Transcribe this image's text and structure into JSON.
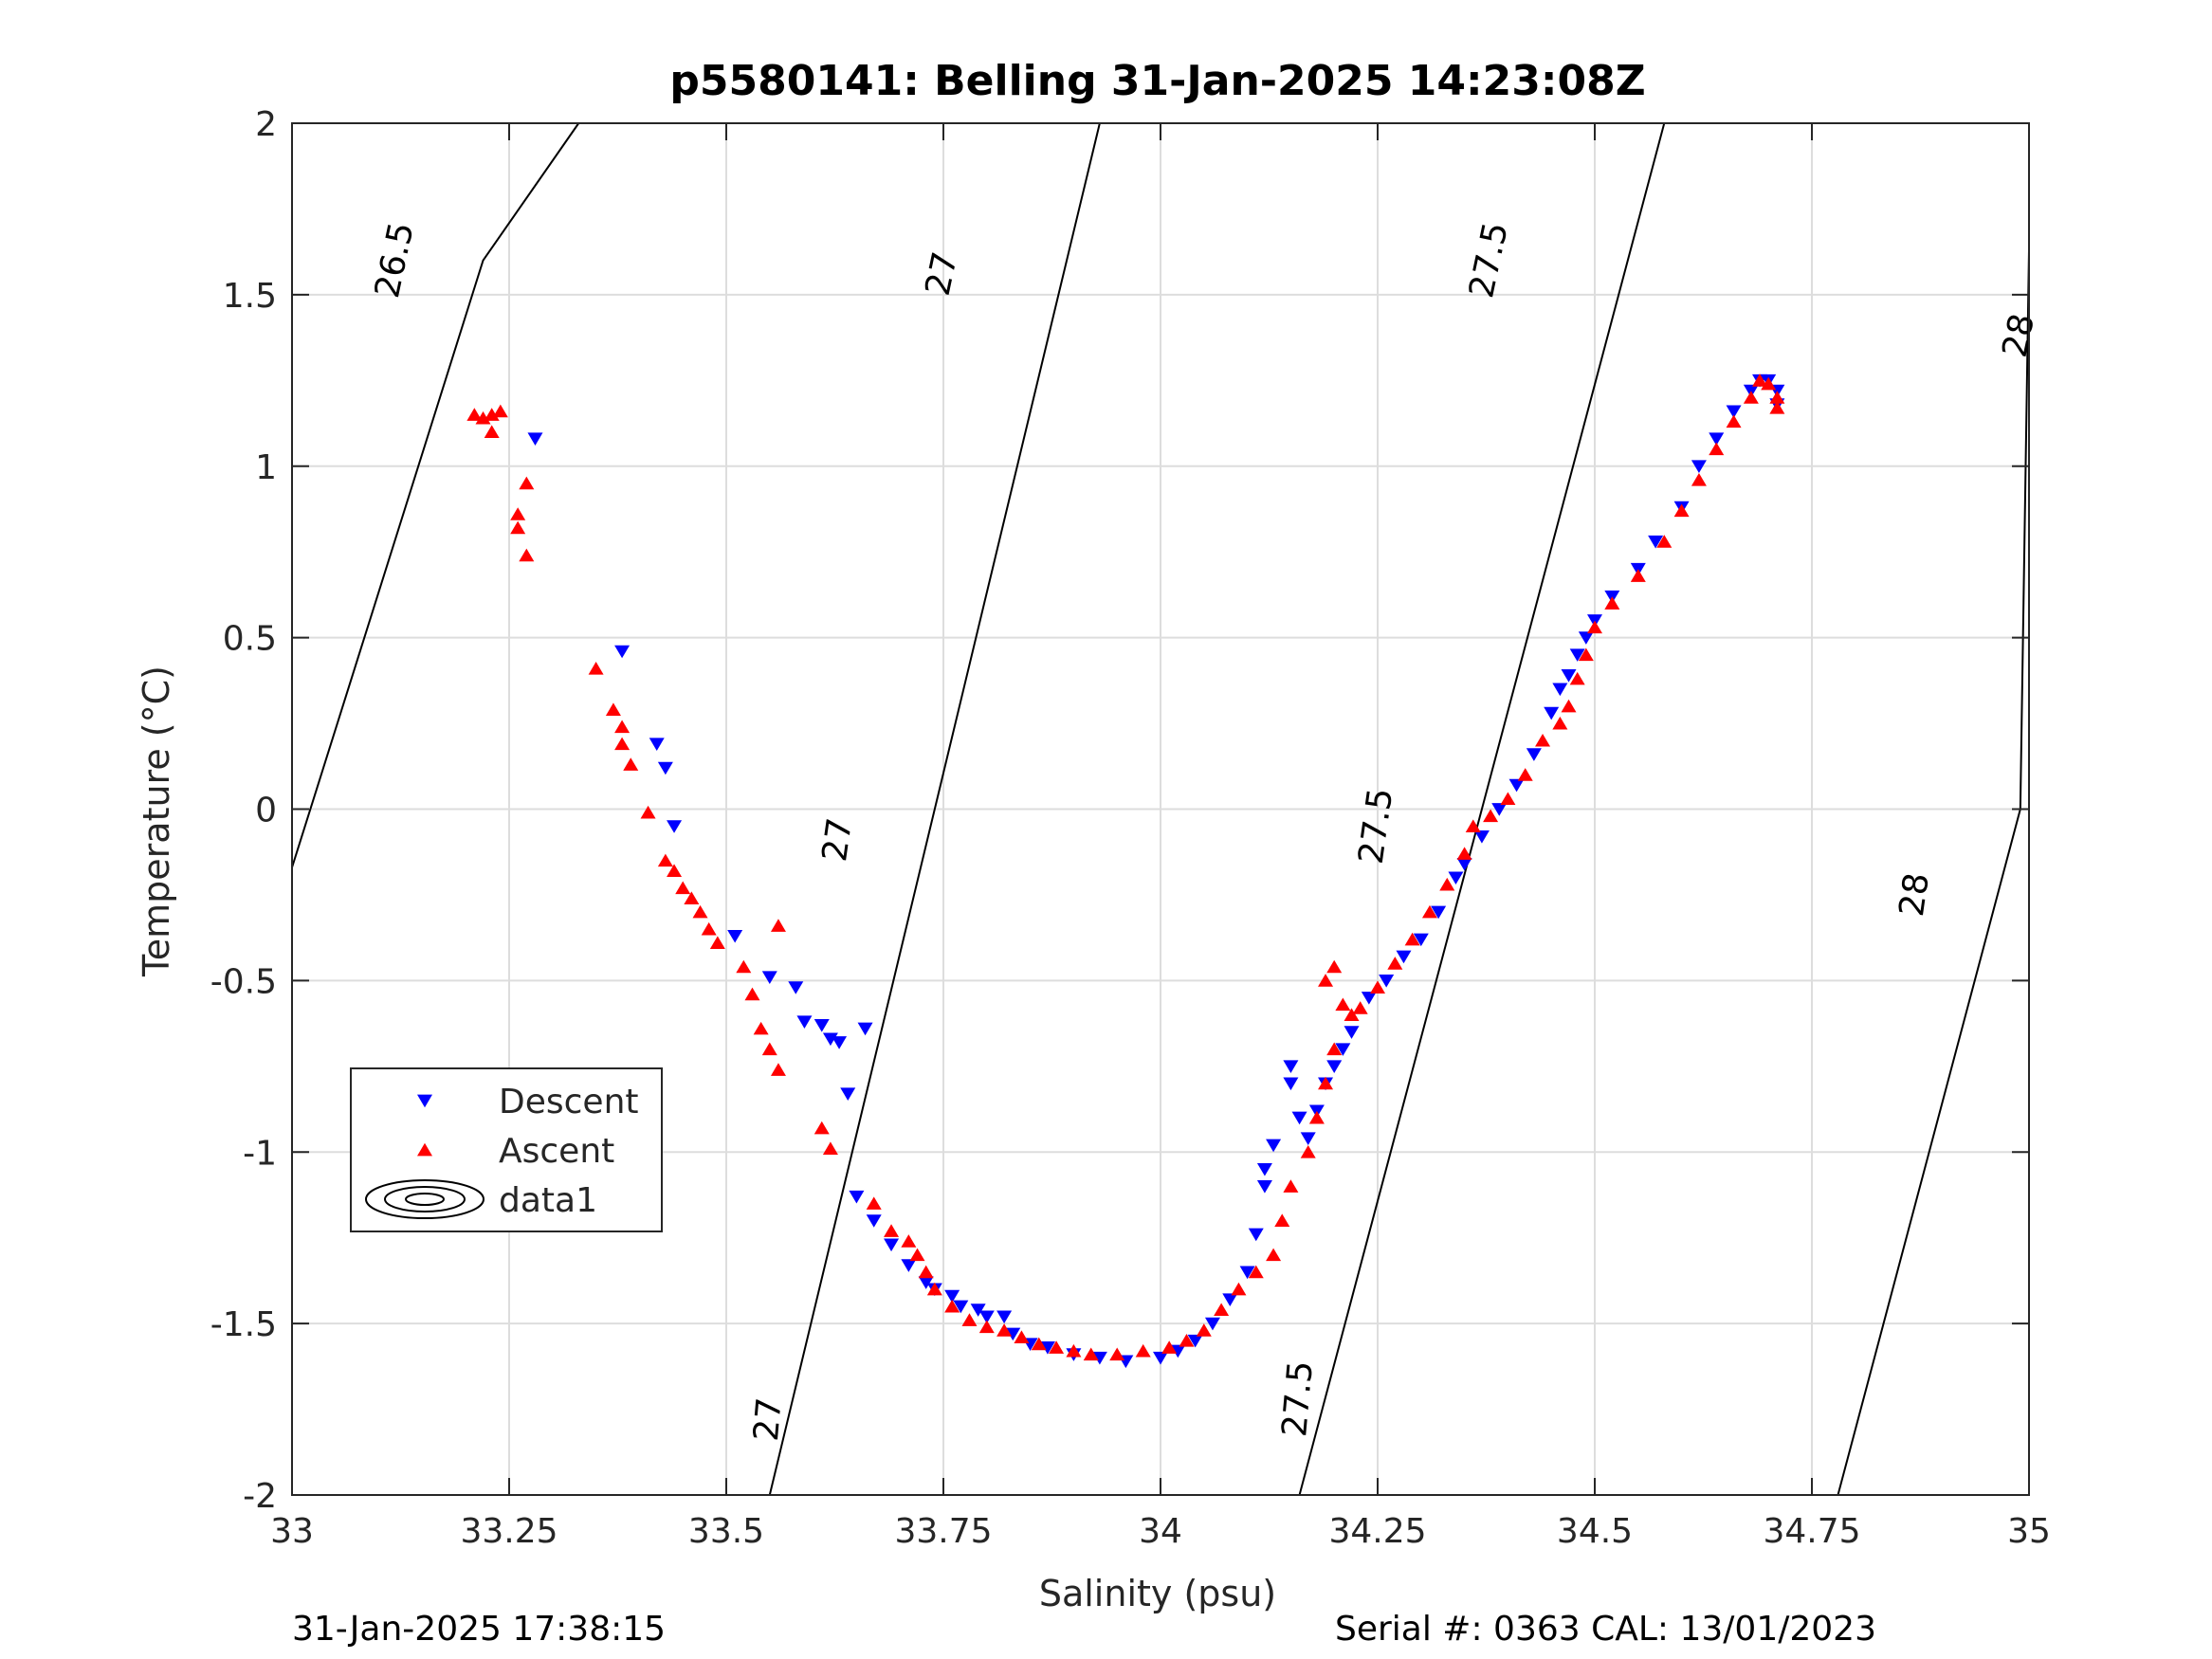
{
  "chart_data": {
    "type": "scatter",
    "title": "p5580141: Belling 31-Jan-2025 14:23:08Z",
    "xlabel": "Salinity (psu)",
    "ylabel": "Temperature (°C)",
    "xlim": [
      33,
      35
    ],
    "ylim": [
      -2,
      2
    ],
    "xticks": [
      33,
      33.25,
      33.5,
      33.75,
      34,
      34.25,
      34.5,
      34.75,
      35
    ],
    "xtick_labels": [
      "33",
      "33.25",
      "33.5",
      "33.75",
      "34",
      "34.25",
      "34.5",
      "34.75",
      "35"
    ],
    "yticks": [
      -2,
      -1.5,
      -1,
      -0.5,
      0,
      0.5,
      1,
      1.5,
      2
    ],
    "ytick_labels": [
      "-2",
      "-1.5",
      "-1",
      "-0.5",
      "0",
      "0.5",
      "1",
      "1.5",
      "2"
    ],
    "grid": true,
    "legend_position": "lower-left",
    "legend": [
      {
        "label": "Descent",
        "marker": "triangle-down",
        "color": "#0000ff"
      },
      {
        "label": "Ascent",
        "marker": "triangle-up",
        "color": "#ff0000"
      },
      {
        "label": "data1",
        "marker": "contour",
        "color": "#000000"
      }
    ],
    "series": [
      {
        "name": "Descent",
        "marker": "triangle-down",
        "color": "#0000ff",
        "points": [
          [
            33.28,
            1.08
          ],
          [
            33.38,
            0.46
          ],
          [
            33.42,
            0.19
          ],
          [
            33.43,
            0.12
          ],
          [
            33.44,
            -0.05
          ],
          [
            33.51,
            -0.37
          ],
          [
            33.55,
            -0.49
          ],
          [
            33.58,
            -0.52
          ],
          [
            33.59,
            -0.62
          ],
          [
            33.61,
            -0.63
          ],
          [
            33.62,
            -0.67
          ],
          [
            33.63,
            -0.68
          ],
          [
            33.66,
            -0.64
          ],
          [
            33.64,
            -0.83
          ],
          [
            33.65,
            -1.13
          ],
          [
            33.67,
            -1.2
          ],
          [
            33.69,
            -1.27
          ],
          [
            33.71,
            -1.33
          ],
          [
            33.73,
            -1.38
          ],
          [
            33.74,
            -1.4
          ],
          [
            33.76,
            -1.42
          ],
          [
            33.77,
            -1.45
          ],
          [
            33.79,
            -1.46
          ],
          [
            33.8,
            -1.48
          ],
          [
            33.82,
            -1.48
          ],
          [
            33.83,
            -1.53
          ],
          [
            33.85,
            -1.56
          ],
          [
            33.87,
            -1.57
          ],
          [
            33.9,
            -1.59
          ],
          [
            33.93,
            -1.6
          ],
          [
            33.96,
            -1.61
          ],
          [
            34.0,
            -1.6
          ],
          [
            34.02,
            -1.58
          ],
          [
            34.04,
            -1.55
          ],
          [
            34.06,
            -1.5
          ],
          [
            34.08,
            -1.43
          ],
          [
            34.1,
            -1.35
          ],
          [
            34.11,
            -1.24
          ],
          [
            34.12,
            -1.1
          ],
          [
            34.12,
            -1.05
          ],
          [
            34.13,
            -0.98
          ],
          [
            34.15,
            -0.75
          ],
          [
            34.15,
            -0.8
          ],
          [
            34.16,
            -0.9
          ],
          [
            34.17,
            -0.96
          ],
          [
            34.18,
            -0.88
          ],
          [
            34.19,
            -0.8
          ],
          [
            34.2,
            -0.75
          ],
          [
            34.21,
            -0.7
          ],
          [
            34.22,
            -0.65
          ],
          [
            34.24,
            -0.55
          ],
          [
            34.26,
            -0.5
          ],
          [
            34.28,
            -0.43
          ],
          [
            34.3,
            -0.38
          ],
          [
            34.32,
            -0.3
          ],
          [
            34.34,
            -0.2
          ],
          [
            34.35,
            -0.16
          ],
          [
            34.37,
            -0.08
          ],
          [
            34.39,
            0.0
          ],
          [
            34.41,
            0.07
          ],
          [
            34.43,
            0.16
          ],
          [
            34.45,
            0.28
          ],
          [
            34.46,
            0.35
          ],
          [
            34.47,
            0.39
          ],
          [
            34.48,
            0.45
          ],
          [
            34.49,
            0.5
          ],
          [
            34.5,
            0.55
          ],
          [
            34.52,
            0.62
          ],
          [
            34.55,
            0.7
          ],
          [
            34.57,
            0.78
          ],
          [
            34.6,
            0.88
          ],
          [
            34.62,
            1.0
          ],
          [
            34.64,
            1.08
          ],
          [
            34.66,
            1.16
          ],
          [
            34.68,
            1.22
          ],
          [
            34.69,
            1.25
          ],
          [
            34.7,
            1.25
          ],
          [
            34.71,
            1.22
          ],
          [
            34.71,
            1.18
          ]
        ]
      },
      {
        "name": "Ascent",
        "marker": "triangle-up",
        "color": "#ff0000",
        "points": [
          [
            33.21,
            1.15
          ],
          [
            33.22,
            1.14
          ],
          [
            33.23,
            1.15
          ],
          [
            33.24,
            1.16
          ],
          [
            33.23,
            1.1
          ],
          [
            33.27,
            0.95
          ],
          [
            33.26,
            0.86
          ],
          [
            33.26,
            0.82
          ],
          [
            33.27,
            0.74
          ],
          [
            33.35,
            0.41
          ],
          [
            33.37,
            0.29
          ],
          [
            33.38,
            0.24
          ],
          [
            33.38,
            0.19
          ],
          [
            33.39,
            0.13
          ],
          [
            33.41,
            -0.01
          ],
          [
            33.43,
            -0.15
          ],
          [
            33.44,
            -0.18
          ],
          [
            33.45,
            -0.23
          ],
          [
            33.46,
            -0.26
          ],
          [
            33.47,
            -0.3
          ],
          [
            33.48,
            -0.35
          ],
          [
            33.49,
            -0.39
          ],
          [
            33.52,
            -0.46
          ],
          [
            33.53,
            -0.54
          ],
          [
            33.56,
            -0.34
          ],
          [
            33.54,
            -0.64
          ],
          [
            33.55,
            -0.7
          ],
          [
            33.56,
            -0.76
          ],
          [
            33.61,
            -0.93
          ],
          [
            33.62,
            -0.99
          ],
          [
            33.67,
            -1.15
          ],
          [
            33.69,
            -1.23
          ],
          [
            33.71,
            -1.26
          ],
          [
            33.72,
            -1.3
          ],
          [
            33.73,
            -1.35
          ],
          [
            33.74,
            -1.4
          ],
          [
            33.76,
            -1.45
          ],
          [
            33.78,
            -1.49
          ],
          [
            33.8,
            -1.51
          ],
          [
            33.82,
            -1.52
          ],
          [
            33.84,
            -1.54
          ],
          [
            33.86,
            -1.56
          ],
          [
            33.88,
            -1.57
          ],
          [
            33.9,
            -1.58
          ],
          [
            33.92,
            -1.59
          ],
          [
            33.95,
            -1.59
          ],
          [
            33.98,
            -1.58
          ],
          [
            34.01,
            -1.57
          ],
          [
            34.03,
            -1.55
          ],
          [
            34.05,
            -1.52
          ],
          [
            34.07,
            -1.46
          ],
          [
            34.09,
            -1.4
          ],
          [
            34.11,
            -1.35
          ],
          [
            34.13,
            -1.3
          ],
          [
            34.14,
            -1.2
          ],
          [
            34.15,
            -1.1
          ],
          [
            34.17,
            -1.0
          ],
          [
            34.18,
            -0.9
          ],
          [
            34.19,
            -0.8
          ],
          [
            34.2,
            -0.7
          ],
          [
            34.19,
            -0.5
          ],
          [
            34.2,
            -0.46
          ],
          [
            34.21,
            -0.57
          ],
          [
            34.22,
            -0.6
          ],
          [
            34.23,
            -0.58
          ],
          [
            34.25,
            -0.52
          ],
          [
            34.27,
            -0.45
          ],
          [
            34.29,
            -0.38
          ],
          [
            34.31,
            -0.3
          ],
          [
            34.33,
            -0.22
          ],
          [
            34.35,
            -0.13
          ],
          [
            34.36,
            -0.05
          ],
          [
            34.38,
            -0.02
          ],
          [
            34.4,
            0.03
          ],
          [
            34.42,
            0.1
          ],
          [
            34.44,
            0.2
          ],
          [
            34.46,
            0.25
          ],
          [
            34.47,
            0.3
          ],
          [
            34.48,
            0.38
          ],
          [
            34.49,
            0.45
          ],
          [
            34.5,
            0.53
          ],
          [
            34.52,
            0.6
          ],
          [
            34.55,
            0.68
          ],
          [
            34.58,
            0.78
          ],
          [
            34.6,
            0.87
          ],
          [
            34.62,
            0.96
          ],
          [
            34.64,
            1.05
          ],
          [
            34.66,
            1.13
          ],
          [
            34.68,
            1.2
          ],
          [
            34.69,
            1.25
          ],
          [
            34.7,
            1.24
          ],
          [
            34.71,
            1.2
          ],
          [
            34.71,
            1.17
          ]
        ]
      }
    ],
    "density_contours": [
      {
        "level": "26.5",
        "points": [
          [
            33.0,
            -0.17
          ],
          [
            33.22,
            1.6
          ],
          [
            33.33,
            2.0
          ]
        ]
      },
      {
        "level": "27",
        "points": [
          [
            33.55,
            -2.0
          ],
          [
            33.74,
            0.0
          ],
          [
            33.93,
            2.0
          ]
        ]
      },
      {
        "level": "27.5",
        "points": [
          [
            34.16,
            -2.0
          ],
          [
            34.37,
            0.0
          ],
          [
            34.58,
            2.0
          ]
        ]
      },
      {
        "level": "28",
        "points": [
          [
            34.78,
            -2.0
          ],
          [
            34.99,
            0.0
          ],
          [
            35.0,
            1.63
          ]
        ]
      }
    ],
    "contour_labels": [
      {
        "text": "26.5",
        "x": 33.12,
        "y": 1.6,
        "angle": -78
      },
      {
        "text": "27",
        "x": 33.75,
        "y": 1.56,
        "angle": -78
      },
      {
        "text": "27",
        "x": 33.63,
        "y": -0.09,
        "angle": -82
      },
      {
        "text": "27",
        "x": 33.55,
        "y": -1.78,
        "angle": -85
      },
      {
        "text": "27.5",
        "x": 34.38,
        "y": 1.6,
        "angle": -78
      },
      {
        "text": "27.5",
        "x": 34.25,
        "y": -0.05,
        "angle": -82
      },
      {
        "text": "27.5",
        "x": 34.16,
        "y": -1.72,
        "angle": -85
      },
      {
        "text": "28",
        "x": 34.99,
        "y": 1.38,
        "angle": -78
      },
      {
        "text": "28",
        "x": 34.87,
        "y": -0.25,
        "angle": -82
      }
    ]
  },
  "footer": {
    "left": "31-Jan-2025 17:38:15",
    "right": "Serial #: 0363  CAL: 13/01/2023"
  }
}
